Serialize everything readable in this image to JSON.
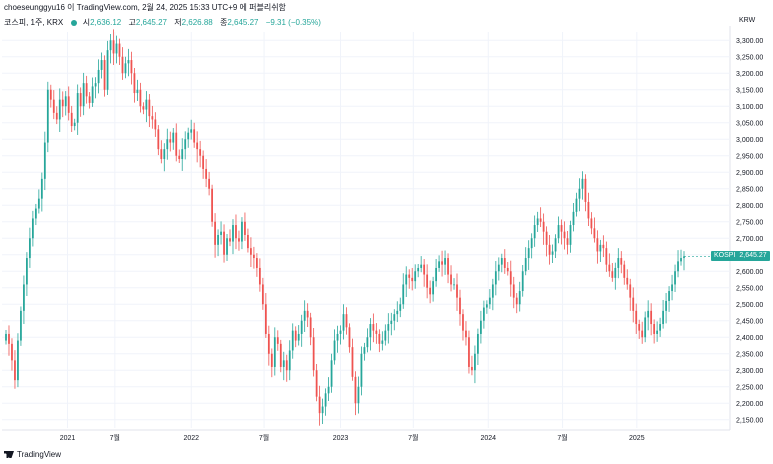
{
  "header": {
    "attribution": "choeseunggyu16 이 TradingView.com, 2월 24, 2025 15:33 UTC+9 에 퍼블리쉬함",
    "symbol_line": "코스피, 1주, KRX",
    "open_label": "시",
    "open_value": "2,636.12",
    "high_label": "고",
    "high_value": "2,645.27",
    "low_label": "저",
    "low_value": "2,626.88",
    "close_label": "종",
    "close_value": "2,645.27",
    "change": "−9.31 (−0.35%)",
    "currency": "KRW"
  },
  "price_tag": {
    "symbol": "KOSPI",
    "value": "2,645.27"
  },
  "footer": {
    "brand": "TradingView"
  },
  "colors": {
    "up": "#26a69a",
    "down": "#ef5350",
    "grid": "#f0f3fa",
    "axis_text": "#131722"
  },
  "chart_data": {
    "type": "candlestick",
    "interval": "1W",
    "ylim": [
      2125,
      3325
    ],
    "y_ticks": [
      "3,300.00",
      "3,250.00",
      "3,200.00",
      "3,150.00",
      "3,100.00",
      "3,050.00",
      "3,000.00",
      "2,950.00",
      "2,900.00",
      "2,850.00",
      "2,800.00",
      "2,750.00",
      "2,700.00",
      "2,650.00",
      "2,600.00",
      "2,550.00",
      "2,500.00",
      "2,450.00",
      "2,400.00",
      "2,350.00",
      "2,300.00",
      "2,250.00",
      "2,200.00",
      "2,150.00"
    ],
    "x_ticks": [
      {
        "label": "2021",
        "t": 0.09
      },
      {
        "label": "7월",
        "t": 0.155
      },
      {
        "label": "2022",
        "t": 0.26
      },
      {
        "label": "7월",
        "t": 0.36
      },
      {
        "label": "2023",
        "t": 0.465
      },
      {
        "label": "7월",
        "t": 0.565
      },
      {
        "label": "2024",
        "t": 0.668
      },
      {
        "label": "7월",
        "t": 0.77
      },
      {
        "label": "2025",
        "t": 0.872
      }
    ],
    "closes": [
      2410,
      2380,
      2330,
      2270,
      2390,
      2480,
      2560,
      2640,
      2700,
      2760,
      2790,
      2820,
      2880,
      2990,
      3150,
      3120,
      3080,
      3060,
      3120,
      3100,
      3130,
      3080,
      3040,
      3050,
      3140,
      3100,
      3170,
      3130,
      3110,
      3160,
      3170,
      3210,
      3240,
      3150,
      3270,
      3300,
      3260,
      3290,
      3250,
      3200,
      3230,
      3240,
      3200,
      3140,
      3150,
      3100,
      3090,
      3120,
      3070,
      3060,
      3030,
      2970,
      2940,
      2970,
      3000,
      2990,
      3020,
      2950,
      2940,
      2970,
      3000,
      3020,
      3030,
      2990,
      2970,
      2950,
      2910,
      2880,
      2850,
      2750,
      2680,
      2710,
      2720,
      2650,
      2700,
      2690,
      2740,
      2700,
      2690,
      2750,
      2710,
      2670,
      2650,
      2640,
      2610,
      2560,
      2500,
      2410,
      2350,
      2310,
      2400,
      2380,
      2310,
      2330,
      2300,
      2360,
      2420,
      2390,
      2410,
      2450,
      2480,
      2460,
      2400,
      2300,
      2220,
      2170,
      2190,
      2230,
      2250,
      2330,
      2390,
      2410,
      2420,
      2470,
      2430,
      2370,
      2280,
      2200,
      2250,
      2350,
      2370,
      2400,
      2440,
      2420,
      2410,
      2380,
      2390,
      2420,
      2440,
      2450,
      2470,
      2480,
      2500,
      2560,
      2590,
      2580,
      2570,
      2600,
      2610,
      2620,
      2590,
      2550,
      2530,
      2570,
      2610,
      2630,
      2620,
      2640,
      2590,
      2560,
      2560,
      2520,
      2470,
      2420,
      2400,
      2310,
      2300,
      2350,
      2410,
      2450,
      2490,
      2500,
      2520,
      2560,
      2600,
      2620,
      2640,
      2610,
      2600,
      2560,
      2520,
      2500,
      2540,
      2600,
      2640,
      2670,
      2700,
      2740,
      2760,
      2750,
      2720,
      2680,
      2650,
      2660,
      2700,
      2740,
      2720,
      2700,
      2680,
      2740,
      2780,
      2820,
      2850,
      2880,
      2810,
      2760,
      2730,
      2700,
      2660,
      2680,
      2670,
      2620,
      2600,
      2580,
      2610,
      2640,
      2620,
      2580,
      2560,
      2520,
      2480,
      2440,
      2420,
      2400,
      2460,
      2480,
      2440,
      2410,
      2420,
      2440,
      2480,
      2510,
      2540,
      2560,
      2600,
      2630,
      2640,
      2645
    ]
  }
}
